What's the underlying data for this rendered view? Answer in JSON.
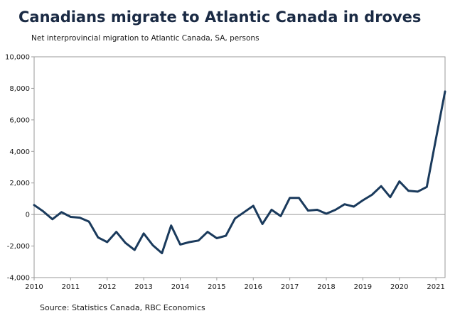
{
  "title": "Canadians migrate to Atlantic Canada in droves",
  "subtitle": "Net interprovincial migration to Atlantic Canada, SA, persons",
  "source": "Source: Statistics Canada, RBC Economics",
  "chart_data": {
    "type": "line",
    "title": "Canadians migrate to Atlantic Canada in droves",
    "subtitle": "Net interprovincial migration to Atlantic Canada, SA, persons",
    "xlabel": "",
    "ylabel": "",
    "xlim": [
      2010,
      2021.25
    ],
    "ylim": [
      -4000,
      10000
    ],
    "x_ticks": [
      "2010",
      "2011",
      "2012",
      "2013",
      "2014",
      "2015",
      "2016",
      "2017",
      "2018",
      "2019",
      "2020",
      "2021"
    ],
    "y_ticks": [
      "-4,000",
      "-2,000",
      "0",
      "2,000",
      "4,000",
      "6,000",
      "8,000",
      "10,000"
    ],
    "line_color": "#1a3a5c",
    "grid": false,
    "legend": "none",
    "series": [
      {
        "x": [
          2010.0,
          2010.25,
          2010.5,
          2010.75,
          2011.0,
          2011.25,
          2011.5,
          2011.75,
          2012.0,
          2012.25,
          2012.5,
          2012.75,
          2013.0,
          2013.25,
          2013.5,
          2013.75,
          2014.0,
          2014.25,
          2014.5,
          2014.75,
          2015.0,
          2015.25,
          2015.5,
          2015.75,
          2016.0,
          2016.25,
          2016.5,
          2016.75,
          2017.0,
          2017.25,
          2017.5,
          2017.75,
          2018.0,
          2018.25,
          2018.5,
          2018.75,
          2019.0,
          2019.25,
          2019.5,
          2019.75,
          2020.0,
          2020.25,
          2020.5,
          2020.75,
          2021.0,
          2021.25
        ],
        "values": [
          600,
          200,
          -300,
          150,
          -150,
          -200,
          -450,
          -1450,
          -1750,
          -1100,
          -1800,
          -2250,
          -1200,
          -1950,
          -2450,
          -700,
          -1900,
          -1750,
          -1650,
          -1100,
          -1500,
          -1350,
          -250,
          150,
          550,
          -600,
          300,
          -100,
          1050,
          1050,
          250,
          300,
          50,
          300,
          650,
          500,
          900,
          1250,
          1800,
          1100,
          2100,
          1500,
          1450,
          1750,
          4800,
          7800
        ]
      }
    ]
  }
}
